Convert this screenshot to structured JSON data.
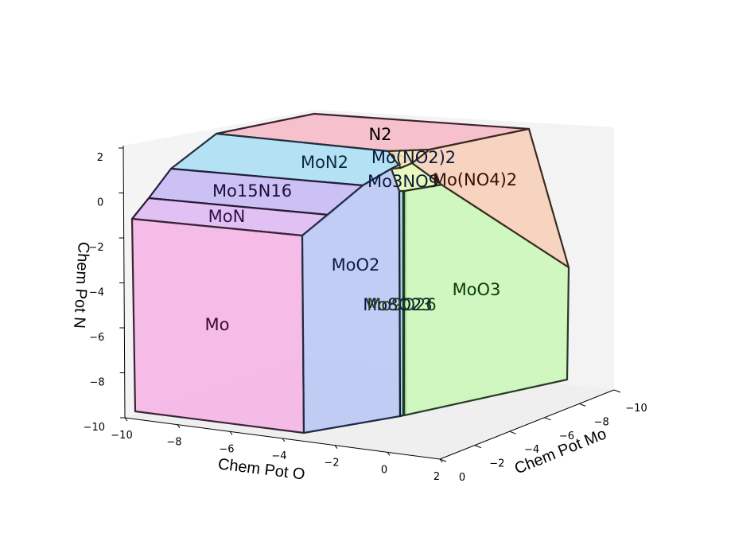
{
  "chart_data": {
    "type": "3d-polyhedral-phase-diagram",
    "title": "",
    "xlabel": "Chem Pot O",
    "ylabel": "Chem Pot Mo",
    "zlabel": "Chem Pot N",
    "xlim": [
      -10,
      2
    ],
    "ylim": [
      -10,
      0
    ],
    "zlim": [
      -10,
      2
    ],
    "x_ticks": [
      "−10",
      "−8",
      "−6",
      "−4",
      "−2",
      "0",
      "2"
    ],
    "y_ticks": [
      "−10",
      "−8",
      "−6",
      "−4",
      "−2",
      "0"
    ],
    "z_ticks": [
      "2",
      "0",
      "−2",
      "−4",
      "−6",
      "−8",
      "−10"
    ],
    "grid": false,
    "regions": [
      {
        "name": "N2",
        "color": "#f7b6c6",
        "label_color": "#000000"
      },
      {
        "name": "MoN2",
        "color": "#a8def3",
        "label_color": "#0b2a3f"
      },
      {
        "name": "Mo15N16",
        "color": "#c3b7f3",
        "label_color": "#1d0d3a"
      },
      {
        "name": "MoN",
        "color": "#ddb6f3",
        "label_color": "#30104a"
      },
      {
        "name": "Mo",
        "color": "#f4b2e4",
        "label_color": "#3b0a2e"
      },
      {
        "name": "MoO2",
        "color": "#b9c6f6",
        "label_color": "#0a1a40"
      },
      {
        "name": "Mo(NO2)2",
        "color": "#fbe6b6",
        "label_color": "#0a1a40"
      },
      {
        "name": "Mo3NO9",
        "color": "#e8f9b5",
        "label_color": "#0a1a40"
      },
      {
        "name": "Mo(NO4)2",
        "color": "#f6ceb6",
        "label_color": "#3a0e00"
      },
      {
        "name": "MoO3",
        "color": "#c8f7b5",
        "label_color": "#0b3a0b"
      },
      {
        "name": "Mo8O23",
        "color": "#a8d6f0",
        "label_color": "#0a1a40"
      },
      {
        "name": "Mo9O26",
        "color": "#b2ecc0",
        "label_color": "#1a3a10"
      }
    ]
  }
}
